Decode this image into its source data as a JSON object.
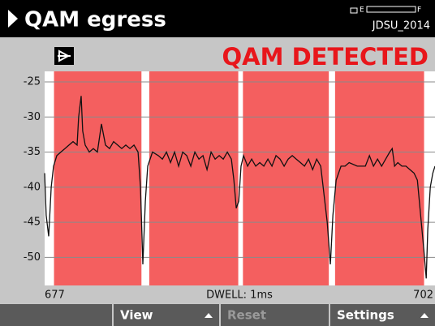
{
  "header": {
    "title": "QAM egress",
    "battery": {
      "left": "E",
      "right": "F"
    },
    "device": "JDSU_2014"
  },
  "status": "QAM DETECTED",
  "chart_data": {
    "type": "line",
    "annotation": "DWELL: 1ms",
    "xlim": [
      677,
      702
    ],
    "xticks": [
      677,
      702
    ],
    "ylim": [
      -54,
      -23.5
    ],
    "yticks": [
      -25,
      -30,
      -35,
      -40,
      -45,
      -50
    ],
    "grid": true,
    "bands": [
      [
        677.6,
        683.2
      ],
      [
        683.7,
        689.4
      ],
      [
        689.7,
        695.2
      ],
      [
        695.6,
        701.3
      ]
    ],
    "band_color": "#f45f5f",
    "x": [
      677.0,
      677.1,
      677.26,
      677.42,
      677.57,
      677.78,
      678.04,
      678.3,
      678.56,
      678.82,
      679.08,
      679.18,
      679.34,
      679.44,
      679.6,
      679.86,
      680.12,
      680.38,
      680.64,
      680.9,
      681.16,
      681.42,
      681.68,
      681.94,
      682.2,
      682.46,
      682.72,
      682.98,
      683.14,
      683.29,
      683.45,
      683.6,
      683.91,
      684.28,
      684.54,
      684.8,
      685.06,
      685.32,
      685.58,
      685.84,
      686.1,
      686.36,
      686.62,
      686.88,
      687.14,
      687.4,
      687.66,
      687.92,
      688.18,
      688.44,
      688.7,
      688.96,
      689.12,
      689.27,
      689.43,
      689.58,
      689.74,
      690.0,
      690.26,
      690.52,
      690.78,
      691.04,
      691.3,
      691.56,
      691.82,
      692.08,
      692.34,
      692.6,
      692.86,
      693.12,
      693.38,
      693.64,
      693.9,
      694.16,
      694.42,
      694.68,
      694.84,
      695.1,
      695.3,
      695.46,
      695.67,
      695.98,
      696.24,
      696.5,
      697.02,
      697.54,
      697.8,
      698.06,
      698.32,
      698.58,
      698.84,
      699.1,
      699.26,
      699.41,
      699.62,
      699.88,
      700.14,
      700.4,
      700.66,
      700.87,
      701.08,
      701.29,
      701.44,
      701.54,
      701.7,
      701.86,
      702.0
    ],
    "series": [
      {
        "color": "#111111",
        "values": [
          -38,
          -44,
          -47,
          -40,
          -37,
          -35.5,
          -35,
          -34.5,
          -34,
          -33.5,
          -34,
          -30,
          -27,
          -32,
          -34,
          -35,
          -34.5,
          -35,
          -31,
          -34,
          -34.5,
          -33.5,
          -34,
          -34.5,
          -34,
          -34.5,
          -34,
          -35,
          -40,
          -51,
          -42,
          -37,
          -35,
          -35.5,
          -36,
          -35,
          -36.5,
          -35,
          -37,
          -35,
          -35.5,
          -37,
          -35,
          -36,
          -35.5,
          -37.5,
          -35,
          -36,
          -35.5,
          -36,
          -35,
          -36,
          -39,
          -43,
          -42,
          -37,
          -35.5,
          -37,
          -36,
          -37,
          -36.5,
          -37,
          -36,
          -37,
          -35.5,
          -36,
          -37,
          -36,
          -35.5,
          -36,
          -36.5,
          -37,
          -36,
          -37.5,
          -36,
          -37,
          -40,
          -45,
          -51,
          -44,
          -39,
          -37,
          -37,
          -36.5,
          -37,
          -37,
          -35.5,
          -37,
          -36,
          -37,
          -36,
          -35,
          -34.5,
          -37,
          -36.5,
          -37,
          -37,
          -37.5,
          -38,
          -39,
          -44,
          -49,
          -53,
          -46,
          -40,
          -38,
          -37
        ]
      }
    ]
  },
  "softkeys": [
    {
      "label": "View",
      "enabled": true
    },
    {
      "label": "Reset",
      "enabled": false
    },
    {
      "label": "Settings",
      "enabled": true
    }
  ]
}
